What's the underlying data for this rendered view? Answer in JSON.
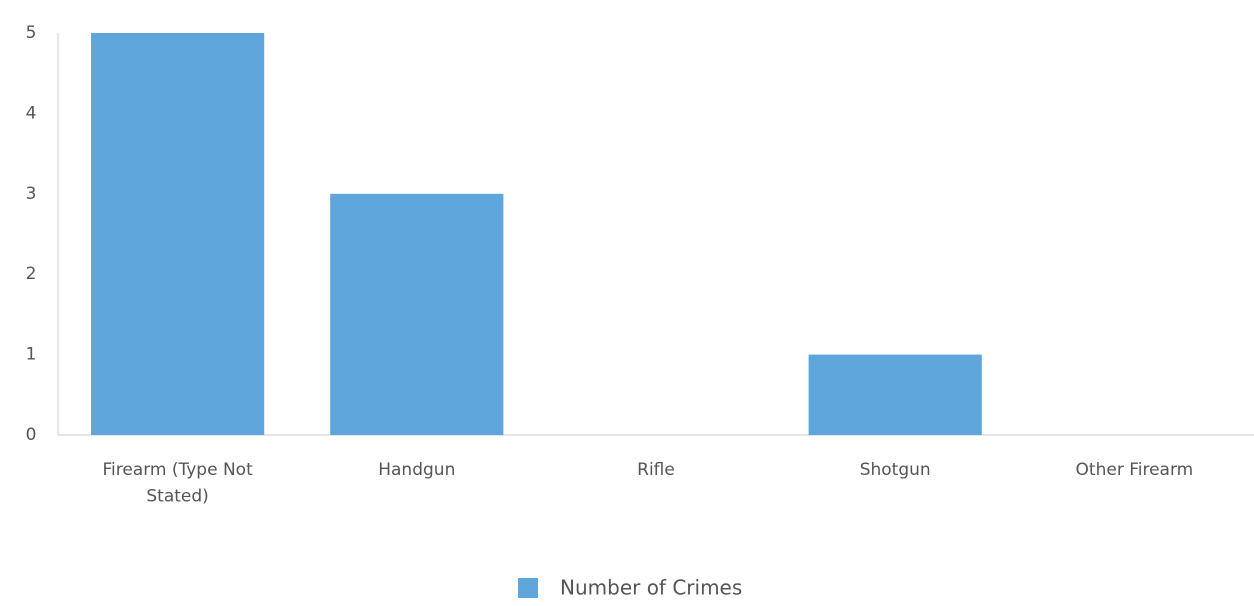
{
  "chart_data": {
    "type": "bar",
    "categories": [
      "Firearm (Type Not Stated)",
      "Handgun",
      "Rifle",
      "Shotgun",
      "Other Firearm"
    ],
    "series": [
      {
        "name": "Number of Crimes",
        "color": "#5ea5db",
        "values": [
          5,
          3,
          0,
          1,
          0
        ]
      }
    ],
    "ylim": [
      0,
      5
    ],
    "yticks": [
      0,
      1,
      2,
      3,
      4,
      5
    ],
    "grid": false,
    "legend": "bottom"
  }
}
